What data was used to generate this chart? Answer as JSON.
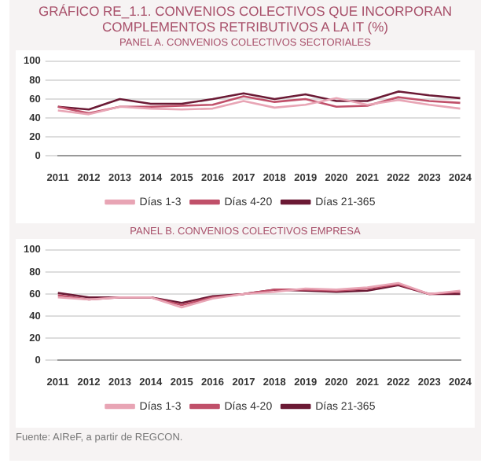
{
  "chart_data": [
    {
      "type": "line",
      "title": "GRÁFICO RE_1.1. CONVENIOS COLECTIVOS QUE INCORPORAN COMPLEMENTOS RETRIBUTIVOS A LA IT (%)",
      "subtitle": "PANEL A. CONVENIOS COLECTIVOS SECTORIALES",
      "categories": [
        "2011",
        "2012",
        "2013",
        "2014",
        "2015",
        "2016",
        "2017",
        "2018",
        "2019",
        "2020",
        "2021",
        "2022",
        "2023",
        "2024"
      ],
      "series": [
        {
          "name": "Días 1-3",
          "color": "#e8a5b5",
          "values": [
            48,
            44,
            52,
            50,
            49,
            50,
            58,
            51,
            54,
            61,
            54,
            59,
            54,
            50
          ]
        },
        {
          "name": "Días 4-20",
          "color": "#c0506a",
          "values": [
            52,
            45,
            52,
            52,
            53,
            54,
            63,
            57,
            60,
            52,
            53,
            62,
            58,
            56
          ]
        },
        {
          "name": "Días 21-365",
          "color": "#6b1a35",
          "values": [
            52,
            49,
            60,
            55,
            55,
            60,
            66,
            60,
            65,
            58,
            58,
            68,
            64,
            61
          ]
        }
      ],
      "ylim": [
        0,
        100
      ],
      "yticks": [
        0,
        20,
        40,
        60,
        80,
        100
      ],
      "grid": "y",
      "legend": "bottom",
      "marker": "none",
      "line_style": "solid"
    },
    {
      "type": "line",
      "title": "PANEL B. CONVENIOS COLECTIVOS EMPRESA",
      "categories": [
        "2011",
        "2012",
        "2013",
        "2014",
        "2015",
        "2016",
        "2017",
        "2018",
        "2019",
        "2020",
        "2021",
        "2022",
        "2023",
        "2024"
      ],
      "series": [
        {
          "name": "Días 1-3",
          "color": "#e8a5b5",
          "values": [
            57,
            55,
            57,
            57,
            48,
            56,
            60,
            62,
            65,
            64,
            66,
            70,
            60,
            63
          ]
        },
        {
          "name": "Días 4-20",
          "color": "#c0506a",
          "values": [
            59,
            55,
            57,
            57,
            50,
            57,
            60,
            64,
            64,
            63,
            65,
            69,
            60,
            62
          ]
        },
        {
          "name": "Días 21-365",
          "color": "#6b1a35",
          "values": [
            61,
            57,
            57,
            57,
            52,
            58,
            60,
            64,
            63,
            62,
            63,
            68,
            60,
            60
          ]
        }
      ],
      "ylim": [
        0,
        100
      ],
      "yticks": [
        0,
        20,
        40,
        60,
        80,
        100
      ],
      "grid": "y",
      "legend": "bottom",
      "marker": "none",
      "line_style": "solid",
      "annotations": [
        "Fuente: AIReF, a partir de REGCON."
      ]
    }
  ]
}
